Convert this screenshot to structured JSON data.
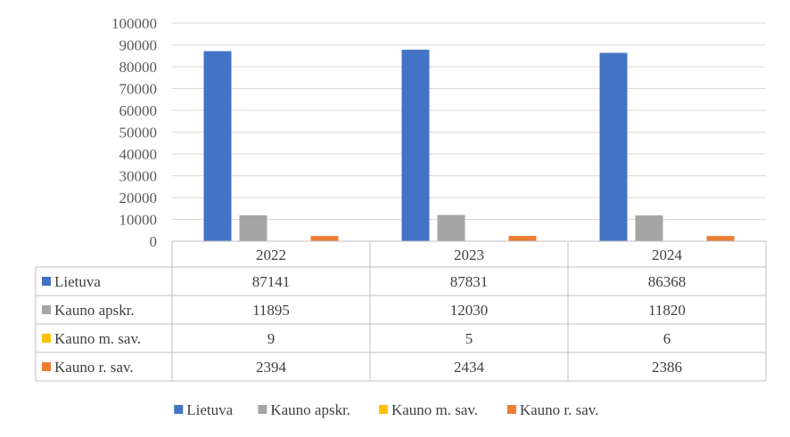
{
  "chart_data": {
    "type": "bar",
    "categories": [
      "2022",
      "2023",
      "2024"
    ],
    "series": [
      {
        "name": "Lietuva",
        "values": [
          87141,
          87831,
          86368
        ],
        "color": "#4472C4"
      },
      {
        "name": "Kauno apskr.",
        "values": [
          11895,
          12030,
          11820
        ],
        "color": "#A5A5A5"
      },
      {
        "name": "Kauno m. sav.",
        "values": [
          9,
          5,
          6
        ],
        "color": "#FFC000"
      },
      {
        "name": "Kauno r. sav.",
        "values": [
          2394,
          2434,
          2386
        ],
        "color": "#ED7D31"
      }
    ],
    "y_ticks": [
      "0",
      "10000",
      "20000",
      "30000",
      "40000",
      "50000",
      "60000",
      "70000",
      "80000",
      "90000",
      "100000"
    ],
    "ylim": [
      0,
      100000
    ],
    "grid": true,
    "data_table": true,
    "legend_position": "bottom"
  }
}
